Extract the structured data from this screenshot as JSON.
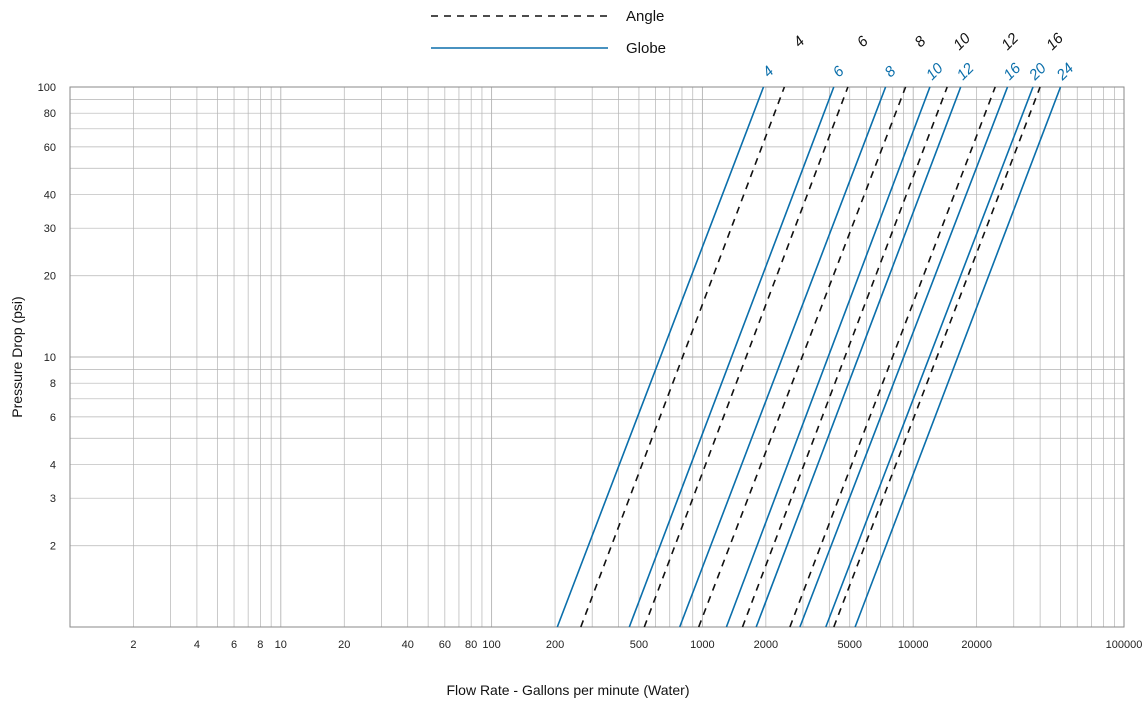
{
  "chart_data": {
    "type": "line",
    "title": "",
    "xlabel": "Flow Rate - Gallons per minute (Water)",
    "ylabel": "Pressure Drop (psi)",
    "x_scale": "log",
    "y_scale": "log",
    "xlim": [
      1,
      100000
    ],
    "ylim": [
      1,
      100
    ],
    "grid": true,
    "x_tick_labels": [
      {
        "value": 2,
        "label": "2"
      },
      {
        "value": 4,
        "label": "4"
      },
      {
        "value": 6,
        "label": "6"
      },
      {
        "value": 8,
        "label": "8"
      },
      {
        "value": 10,
        "label": "10"
      },
      {
        "value": 20,
        "label": "20"
      },
      {
        "value": 40,
        "label": "40"
      },
      {
        "value": 60,
        "label": "60"
      },
      {
        "value": 80,
        "label": "80"
      },
      {
        "value": 100,
        "label": "100"
      },
      {
        "value": 200,
        "label": "200"
      },
      {
        "value": 500,
        "label": "500"
      },
      {
        "value": 1000,
        "label": "1000"
      },
      {
        "value": 2000,
        "label": "2000"
      },
      {
        "value": 5000,
        "label": "5000"
      },
      {
        "value": 10000,
        "label": "10000"
      },
      {
        "value": 20000,
        "label": "20000"
      },
      {
        "value": 100000,
        "label": "100000"
      }
    ],
    "y_tick_labels": [
      {
        "value": 2,
        "label": "2"
      },
      {
        "value": 3,
        "label": "3"
      },
      {
        "value": 4,
        "label": "4"
      },
      {
        "value": 6,
        "label": "6"
      },
      {
        "value": 8,
        "label": "8"
      },
      {
        "value": 10,
        "label": "10"
      },
      {
        "value": 20,
        "label": "20"
      },
      {
        "value": 30,
        "label": "30"
      },
      {
        "value": 40,
        "label": "40"
      },
      {
        "value": 60,
        "label": "60"
      },
      {
        "value": 80,
        "label": "80"
      },
      {
        "value": 100,
        "label": "100"
      }
    ],
    "legend": {
      "position": "top-center",
      "entries": [
        {
          "key": "angle",
          "label": "Angle",
          "style": "dashed",
          "color": "#111111"
        },
        {
          "key": "globe",
          "label": "Globe",
          "style": "solid",
          "color": "#0b6fab"
        }
      ]
    },
    "series": [
      {
        "group": "angle",
        "label": "4",
        "points": [
          [
            265,
            1
          ],
          [
            2450,
            100
          ]
        ]
      },
      {
        "group": "angle",
        "label": "6",
        "points": [
          [
            530,
            1
          ],
          [
            4900,
            100
          ]
        ]
      },
      {
        "group": "angle",
        "label": "8",
        "points": [
          [
            960,
            1
          ],
          [
            9200,
            100
          ]
        ]
      },
      {
        "group": "angle",
        "label": "10",
        "points": [
          [
            1550,
            1
          ],
          [
            14500,
            100
          ]
        ]
      },
      {
        "group": "angle",
        "label": "12",
        "points": [
          [
            2600,
            1
          ],
          [
            24500,
            100
          ]
        ]
      },
      {
        "group": "angle",
        "label": "16",
        "points": [
          [
            4200,
            1
          ],
          [
            40000,
            100
          ]
        ]
      },
      {
        "group": "globe",
        "label": "4",
        "points": [
          [
            205,
            1
          ],
          [
            1950,
            100
          ]
        ]
      },
      {
        "group": "globe",
        "label": "6",
        "points": [
          [
            450,
            1
          ],
          [
            4200,
            100
          ]
        ]
      },
      {
        "group": "globe",
        "label": "8",
        "points": [
          [
            780,
            1
          ],
          [
            7400,
            100
          ]
        ]
      },
      {
        "group": "globe",
        "label": "10",
        "points": [
          [
            1300,
            1
          ],
          [
            12000,
            100
          ]
        ]
      },
      {
        "group": "globe",
        "label": "12",
        "points": [
          [
            1800,
            1
          ],
          [
            16800,
            100
          ]
        ]
      },
      {
        "group": "globe",
        "label": "16",
        "points": [
          [
            2900,
            1
          ],
          [
            28000,
            100
          ]
        ]
      },
      {
        "group": "globe",
        "label": "20",
        "points": [
          [
            3850,
            1
          ],
          [
            37000,
            100
          ]
        ]
      },
      {
        "group": "globe",
        "label": "24",
        "points": [
          [
            5300,
            1
          ],
          [
            50000,
            100
          ]
        ]
      }
    ]
  }
}
